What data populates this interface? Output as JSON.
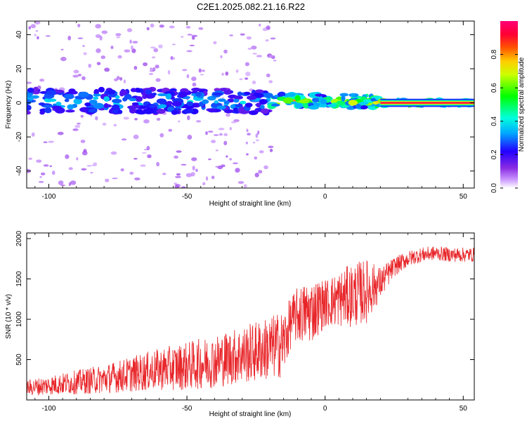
{
  "title": "C2E1.2025.082.21.16.R22",
  "colors": {
    "snr_line": "#e8262a",
    "axis": "#000000",
    "background": "#ffffff"
  },
  "chart_data": [
    {
      "type": "heatmap",
      "xlabel": "Height of straight line (km)",
      "ylabel": "Frequency (Hz)",
      "xlim": [
        -108,
        54
      ],
      "ylim": [
        -50,
        48
      ],
      "xticks": [
        -100,
        -50,
        0,
        50
      ],
      "yticks": [
        -40,
        -20,
        0,
        20,
        40
      ],
      "xticklabels": [
        "-100",
        "-50",
        "0",
        "50"
      ],
      "yticklabels": [
        "-40",
        "-20",
        "0",
        "20",
        "40"
      ],
      "colorbar": {
        "label": "Normalized spectral amplitude",
        "range": [
          0,
          1
        ],
        "ticks": [
          0.0,
          0.2,
          0.4,
          0.6,
          0.8
        ],
        "ticklabels": [
          "0.0",
          "0.2",
          "0.4",
          "0.6",
          "0.8"
        ],
        "colormap": "rainbow (white → violet → blue → cyan → green → yellow → orange → red → magenta)"
      },
      "description_of_signal": [
        {
          "x_range": [
            -108,
            -20
          ],
          "frequency_center": 1,
          "frequency_spread": 7,
          "amplitude": 0.3
        },
        {
          "x_range": [
            -20,
            20
          ],
          "frequency_center": 1,
          "frequency_spread": 4,
          "amplitude": 0.7
        },
        {
          "x_range": [
            20,
            54
          ],
          "frequency_center": 0,
          "frequency_spread": 1.5,
          "amplitude": 1.0
        }
      ]
    },
    {
      "type": "line",
      "xlabel": "Height of straight line (km)",
      "ylabel": "SNR (10 * v/v)",
      "xlim": [
        -108,
        54
      ],
      "ylim": [
        0,
        2070
      ],
      "xticks": [
        -100,
        -50,
        0,
        50
      ],
      "yticks": [
        500,
        1000,
        1500,
        2000
      ],
      "xticklabels": [
        "-100",
        "-50",
        "0",
        "50"
      ],
      "yticklabels": [
        "500",
        "1000",
        "1500",
        "2000"
      ],
      "x": [
        -108,
        -100,
        -90,
        -80,
        -70,
        -60,
        -50,
        -40,
        -30,
        -20,
        -15,
        -12,
        -10,
        -5,
        0,
        5,
        10,
        15,
        20,
        25,
        30,
        35,
        40,
        45,
        50,
        54
      ],
      "y": [
        150,
        180,
        220,
        260,
        320,
        380,
        420,
        480,
        560,
        640,
        700,
        1000,
        1050,
        1100,
        1200,
        1250,
        1300,
        1350,
        1450,
        1650,
        1750,
        1800,
        1820,
        1800,
        1800,
        1800
      ],
      "noise_amplitude": [
        100,
        120,
        150,
        180,
        220,
        260,
        300,
        330,
        360,
        400,
        420,
        300,
        350,
        400,
        300,
        350,
        400,
        400,
        200,
        120,
        100,
        90,
        90,
        90,
        90,
        90
      ]
    }
  ]
}
